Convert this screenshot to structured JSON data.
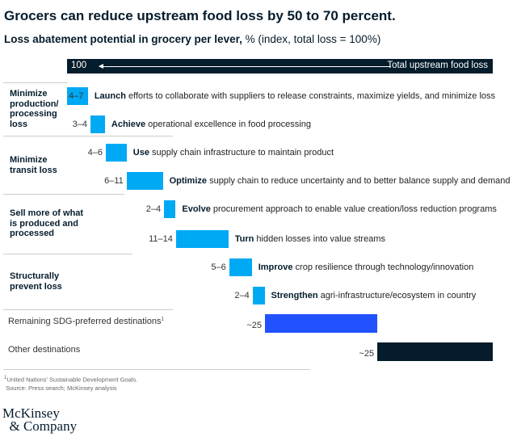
{
  "title": "Grocers can reduce upstream food loss by 50 to 70 percent.",
  "subtitle_bold": "Loss abatement potential in grocery per lever,",
  "subtitle_rest": " % (index, total loss = 100%)",
  "chart_data": {
    "type": "waterfall",
    "total": {
      "value_label": "100",
      "label": "Total upstream food loss",
      "value": 100
    },
    "groups": [
      "Minimize production/ processing loss",
      "Minimize transit loss",
      "Sell more of what is produced and processed",
      "Structurally prevent loss"
    ],
    "levers": [
      {
        "group": 0,
        "range": "4–7",
        "verb": "Launch",
        "text": " efforts to collaborate with suppliers to release constraints, maximize yields, and minimize loss",
        "start": 0,
        "value": 4.9
      },
      {
        "group": 0,
        "range": "3–4",
        "verb": "Achieve",
        "text": " operational excellence in food processing",
        "start": 5.5,
        "value": 3.4
      },
      {
        "group": 1,
        "range": "4–6",
        "verb": "Use",
        "text": " supply chain infrastructure to maintain product",
        "start": 9.1,
        "value": 4.9
      },
      {
        "group": 1,
        "range": "6–11",
        "verb": "Optimize",
        "text": " supply chain to reduce uncertainty and to better balance supply and demand",
        "start": 14.0,
        "value": 8.5
      },
      {
        "group": 2,
        "range": "2–4",
        "verb": "Evolve",
        "text": " procurement approach to enable value creation/loss reduction programs",
        "start": 22.8,
        "value": 2.7
      },
      {
        "group": 2,
        "range": "11–14",
        "verb": "Turn",
        "text": " hidden losses into value streams",
        "start": 25.6,
        "value": 12.3
      },
      {
        "group": 3,
        "range": "5–6",
        "verb": "Improve",
        "text": " crop resilience through technology/innovation",
        "start": 38.1,
        "value": 5.3
      },
      {
        "group": 3,
        "range": "2–4",
        "verb": "Strengthen",
        "text": " agri-infrastructure/ecosystem in country",
        "start": 43.6,
        "value": 2.8
      }
    ],
    "remainders": [
      {
        "label": "Remaining SDG-preferred destinations",
        "sup": "1",
        "range": "~25",
        "start": 46.5,
        "value": 26.4,
        "color": "#2251ff"
      },
      {
        "label": "Other destinations",
        "sup": "",
        "range": "~25",
        "start": 72.9,
        "value": 27.1,
        "color": "#051c2c"
      }
    ],
    "lever_color": "#00a9f4"
  },
  "footnote": "United Nations' Sustainable Development Goals.",
  "footnote_mark": "1",
  "source": "Source: Press search; McKinsey analysis",
  "logo": "McKinsey & Company"
}
